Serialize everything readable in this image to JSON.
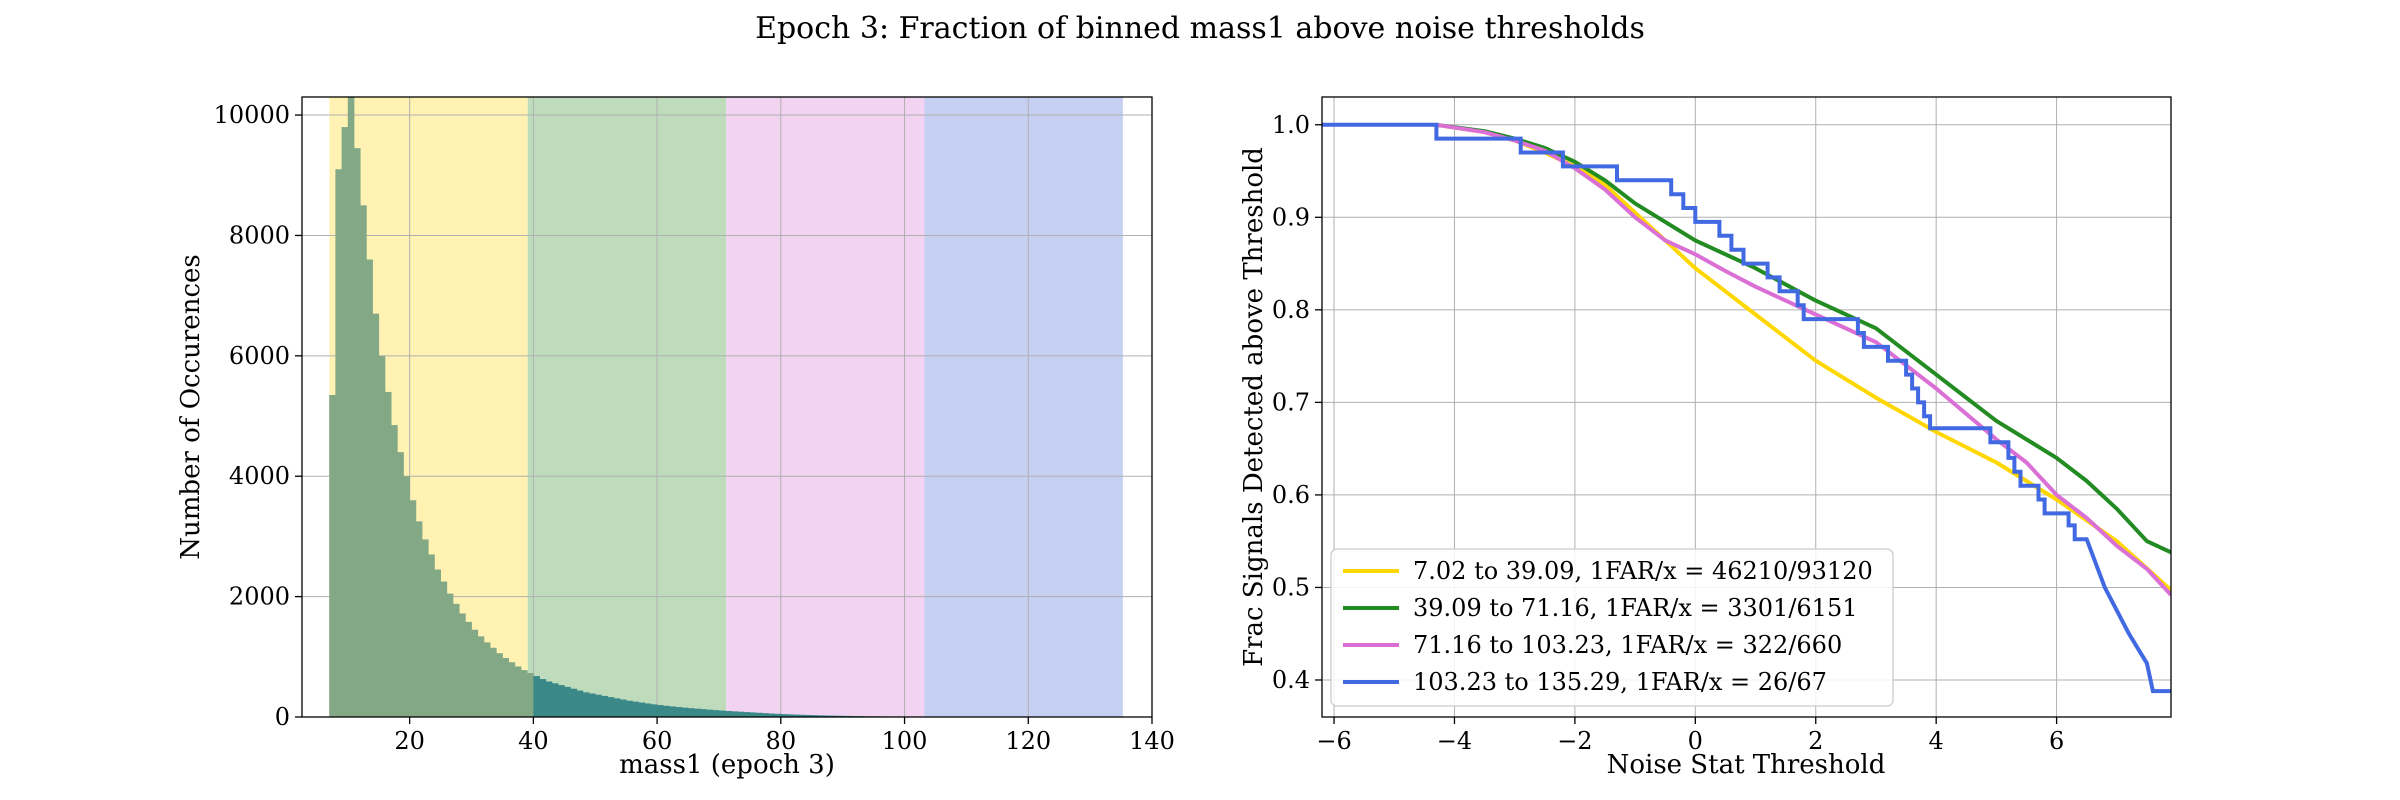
{
  "figure": {
    "suptitle": "Epoch 3: Fraction of binned mass1 above noise thresholds"
  },
  "chart_data": [
    {
      "type": "bar",
      "subtype": "histogram",
      "xlabel": "mass1 (epoch 3)",
      "ylabel": "Number of Occurences",
      "xlim": [
        2.6,
        140.0
      ],
      "ylim": [
        0,
        10300
      ],
      "xticks": [
        20,
        40,
        60,
        80,
        100,
        120,
        140
      ],
      "yticks": [
        0,
        2000,
        4000,
        6000,
        8000,
        10000
      ],
      "grid": true,
      "bands": [
        {
          "from": 7.02,
          "to": 39.09,
          "color": "#fff2b3"
        },
        {
          "from": 39.09,
          "to": 71.16,
          "color": "#bedcbc"
        },
        {
          "from": 71.16,
          "to": 103.23,
          "color": "#f2d3f2"
        },
        {
          "from": 103.23,
          "to": 135.29,
          "color": "#c5d0f3"
        }
      ],
      "bar_color_low": "#82a885",
      "bar_color_high": "#3a8888",
      "bar_split": 39.09,
      "bins": {
        "start": 7.0,
        "width": 1.0,
        "counts": [
          5350,
          9100,
          9800,
          10300,
          9450,
          8500,
          7600,
          6700,
          6000,
          5400,
          4850,
          4400,
          4000,
          3600,
          3250,
          2950,
          2700,
          2450,
          2250,
          2050,
          1880,
          1720,
          1580,
          1450,
          1340,
          1240,
          1150,
          1060,
          980,
          910,
          840,
          780,
          730,
          680,
          630,
          590,
          560,
          530,
          500,
          470,
          440,
          410,
          390,
          370,
          350,
          330,
          310,
          290,
          270,
          255,
          240,
          225,
          210,
          198,
          186,
          175,
          165,
          155,
          146,
          138,
          130,
          122,
          114,
          107,
          100,
          94,
          88,
          82,
          76,
          70,
          64,
          58,
          53,
          48,
          44,
          40,
          37,
          34,
          31,
          28,
          25,
          23,
          21,
          19,
          17,
          15,
          13,
          12,
          11,
          10,
          9,
          8,
          7,
          6,
          5,
          5,
          4,
          4,
          3,
          3,
          3,
          2,
          2,
          2,
          2,
          1,
          1,
          1,
          1,
          1,
          1,
          1,
          1,
          0,
          0,
          0,
          0,
          0,
          0,
          0,
          0,
          0,
          0,
          0,
          0,
          0,
          0,
          0,
          0
        ]
      }
    },
    {
      "type": "line",
      "xlabel": "Noise Stat Threshold",
      "ylabel": "Frac Signals Detected above Threshold",
      "xlim": [
        -6.2,
        7.9
      ],
      "ylim": [
        0.36,
        1.03
      ],
      "xticks": [
        -6,
        -4,
        -2,
        0,
        2,
        4,
        6
      ],
      "yticks": [
        0.4,
        0.5,
        0.6,
        0.7,
        0.8,
        0.9,
        1.0
      ],
      "grid": true,
      "legend_position": "lower-left",
      "series": [
        {
          "name": "7.02 to 39.09, 1FAR/x = 46210/93120",
          "color": "#ffd700",
          "step": false,
          "points": [
            [
              -4.3,
              1.0
            ],
            [
              -3.5,
              0.992
            ],
            [
              -3.0,
              0.983
            ],
            [
              -2.5,
              0.97
            ],
            [
              -2.0,
              0.955
            ],
            [
              -1.5,
              0.935
            ],
            [
              -1.0,
              0.905
            ],
            [
              -0.5,
              0.875
            ],
            [
              0.0,
              0.845
            ],
            [
              0.5,
              0.82
            ],
            [
              1.0,
              0.795
            ],
            [
              2.0,
              0.745
            ],
            [
              3.0,
              0.705
            ],
            [
              4.0,
              0.668
            ],
            [
              5.0,
              0.635
            ],
            [
              6.0,
              0.595
            ],
            [
              7.0,
              0.55
            ],
            [
              7.9,
              0.497
            ]
          ]
        },
        {
          "name": "39.09 to 71.16, 1FAR/x = 3301/6151",
          "color": "#228b22",
          "step": false,
          "points": [
            [
              -4.3,
              1.0
            ],
            [
              -3.5,
              0.993
            ],
            [
              -3.0,
              0.985
            ],
            [
              -2.5,
              0.975
            ],
            [
              -2.0,
              0.96
            ],
            [
              -1.5,
              0.94
            ],
            [
              -1.0,
              0.915
            ],
            [
              -0.5,
              0.895
            ],
            [
              0.0,
              0.875
            ],
            [
              0.5,
              0.86
            ],
            [
              1.0,
              0.845
            ],
            [
              2.0,
              0.81
            ],
            [
              3.0,
              0.78
            ],
            [
              4.0,
              0.73
            ],
            [
              5.0,
              0.68
            ],
            [
              6.0,
              0.64
            ],
            [
              6.5,
              0.615
            ],
            [
              7.0,
              0.585
            ],
            [
              7.5,
              0.55
            ],
            [
              7.9,
              0.538
            ]
          ]
        },
        {
          "name": "71.16 to 103.23, 1FAR/x = 322/660",
          "color": "#da70d6",
          "step": false,
          "points": [
            [
              -4.3,
              1.0
            ],
            [
              -3.5,
              0.992
            ],
            [
              -3.0,
              0.983
            ],
            [
              -2.5,
              0.972
            ],
            [
              -2.0,
              0.953
            ],
            [
              -1.5,
              0.93
            ],
            [
              -1.0,
              0.9
            ],
            [
              -0.5,
              0.875
            ],
            [
              0.0,
              0.86
            ],
            [
              0.5,
              0.842
            ],
            [
              1.0,
              0.825
            ],
            [
              2.0,
              0.795
            ],
            [
              3.0,
              0.765
            ],
            [
              4.0,
              0.715
            ],
            [
              5.0,
              0.66
            ],
            [
              5.5,
              0.635
            ],
            [
              6.0,
              0.6
            ],
            [
              6.5,
              0.575
            ],
            [
              7.0,
              0.545
            ],
            [
              7.5,
              0.52
            ],
            [
              7.9,
              0.492
            ]
          ]
        },
        {
          "name": "103.23 to 135.29, 1FAR/x = 26/67",
          "color": "#4169e1",
          "step": true,
          "points": [
            [
              -6.2,
              1.0
            ],
            [
              -4.3,
              1.0
            ],
            [
              -4.3,
              0.985
            ],
            [
              -2.9,
              0.985
            ],
            [
              -2.9,
              0.97
            ],
            [
              -2.2,
              0.97
            ],
            [
              -2.2,
              0.955
            ],
            [
              -1.3,
              0.955
            ],
            [
              -1.3,
              0.94
            ],
            [
              -0.4,
              0.94
            ],
            [
              -0.4,
              0.925
            ],
            [
              -0.2,
              0.925
            ],
            [
              -0.2,
              0.91
            ],
            [
              0.0,
              0.91
            ],
            [
              0.0,
              0.895
            ],
            [
              0.4,
              0.895
            ],
            [
              0.4,
              0.88
            ],
            [
              0.6,
              0.88
            ],
            [
              0.6,
              0.865
            ],
            [
              0.8,
              0.865
            ],
            [
              0.8,
              0.85
            ],
            [
              1.2,
              0.85
            ],
            [
              1.2,
              0.835
            ],
            [
              1.4,
              0.835
            ],
            [
              1.4,
              0.82
            ],
            [
              1.7,
              0.82
            ],
            [
              1.7,
              0.805
            ],
            [
              1.8,
              0.805
            ],
            [
              1.8,
              0.79
            ],
            [
              2.7,
              0.79
            ],
            [
              2.7,
              0.775
            ],
            [
              2.8,
              0.775
            ],
            [
              2.8,
              0.76
            ],
            [
              3.2,
              0.76
            ],
            [
              3.2,
              0.745
            ],
            [
              3.5,
              0.745
            ],
            [
              3.5,
              0.73
            ],
            [
              3.6,
              0.73
            ],
            [
              3.6,
              0.715
            ],
            [
              3.7,
              0.715
            ],
            [
              3.7,
              0.7
            ],
            [
              3.8,
              0.7
            ],
            [
              3.8,
              0.685
            ],
            [
              3.9,
              0.685
            ],
            [
              3.9,
              0.672
            ],
            [
              4.9,
              0.672
            ],
            [
              4.9,
              0.657
            ],
            [
              5.2,
              0.657
            ],
            [
              5.2,
              0.64
            ],
            [
              5.3,
              0.64
            ],
            [
              5.3,
              0.625
            ],
            [
              5.4,
              0.625
            ],
            [
              5.4,
              0.61
            ],
            [
              5.7,
              0.61
            ],
            [
              5.7,
              0.595
            ],
            [
              5.8,
              0.595
            ],
            [
              5.8,
              0.58
            ],
            [
              6.2,
              0.58
            ],
            [
              6.2,
              0.567
            ],
            [
              6.3,
              0.567
            ],
            [
              6.3,
              0.552
            ],
            [
              6.5,
              0.552
            ],
            [
              6.8,
              0.5
            ],
            [
              7.2,
              0.45
            ],
            [
              7.5,
              0.418
            ],
            [
              7.6,
              0.388
            ],
            [
              7.9,
              0.388
            ]
          ]
        }
      ]
    }
  ]
}
